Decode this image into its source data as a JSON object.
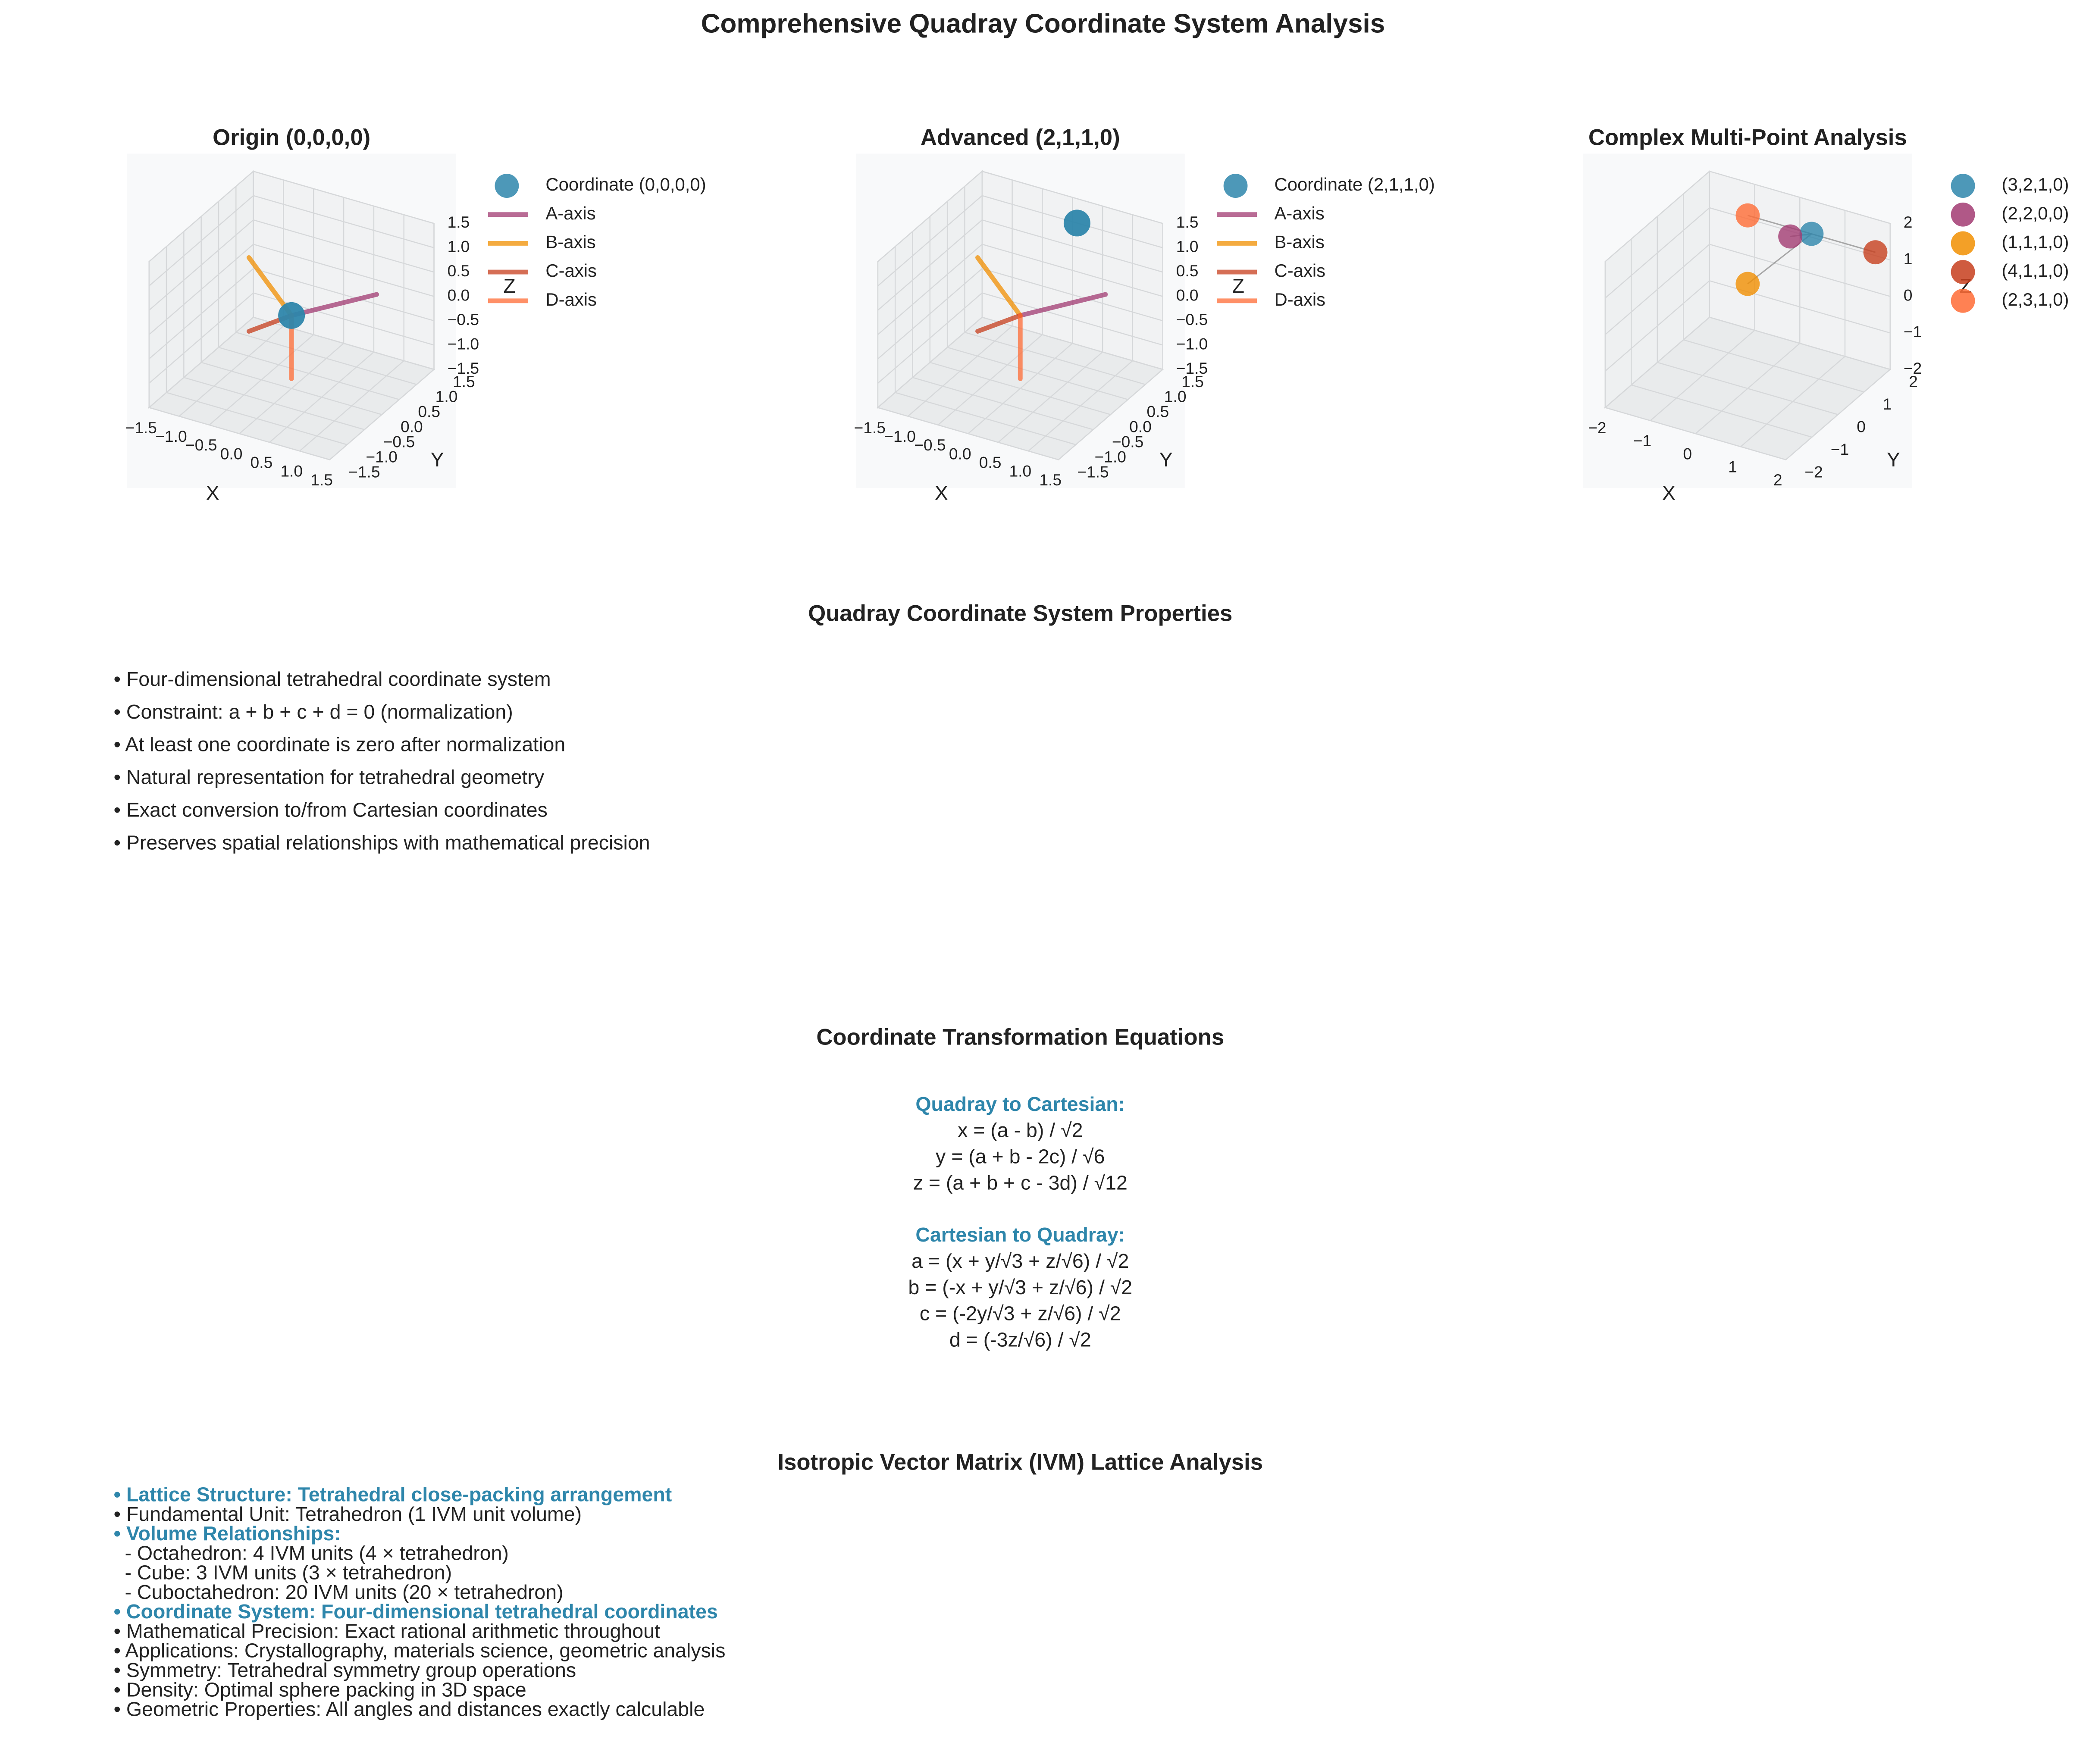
{
  "title": "Comprehensive Quadray Coordinate System Analysis",
  "chart_data": [
    {
      "type": "scatter3d",
      "title": "Origin (0,0,0,0)",
      "xlabel": "X",
      "ylabel": "Y",
      "zlabel": "Z",
      "legend": "outside right",
      "xlim": [
        -1.5,
        1.5
      ],
      "ylim": [
        -1.5,
        1.5
      ],
      "zlim": [
        -1.5,
        1.5
      ],
      "xticks": [
        {
          "value": -1.5,
          "label": "−1.5"
        },
        {
          "value": -1,
          "label": "−1.0"
        },
        {
          "value": -0.5,
          "label": "−0.5"
        },
        {
          "value": 0,
          "label": "0.0"
        },
        0.5,
        {
          "value": 1,
          "label": "1.0"
        },
        1.5
      ],
      "yticks": [
        {
          "value": -1.5,
          "label": "−1.5"
        },
        {
          "value": -1,
          "label": "−1.0"
        },
        {
          "value": -0.5,
          "label": "−0.5"
        },
        {
          "value": 0,
          "label": "0.0"
        },
        0.5,
        {
          "value": 1,
          "label": "1.0"
        },
        1.5
      ],
      "zticks": [
        {
          "value": -1.5,
          "label": "−1.5"
        },
        {
          "value": -1,
          "label": "−1.0"
        },
        {
          "value": -0.5,
          "label": "−0.5"
        },
        {
          "value": 0,
          "label": "0.0"
        },
        0.5,
        {
          "value": 1,
          "label": "1.0"
        },
        1.5
      ],
      "series": [
        {
          "name": "Coordinate (0,0,0,0)",
          "kind": "point",
          "color": "#2e86ab",
          "x": [
            0
          ],
          "y": [
            0
          ],
          "z": [
            0
          ]
        },
        {
          "name": "A-axis",
          "kind": "line",
          "color": "#a23b72",
          "x": [
            0,
            1.061
          ],
          "y": [
            0,
            0.612
          ],
          "z": [
            0,
            0.433
          ]
        },
        {
          "name": "B-axis",
          "kind": "line",
          "color": "#f18f01",
          "x": [
            0,
            -1.061
          ],
          "y": [
            0,
            0.612
          ],
          "z": [
            0,
            0.433
          ]
        },
        {
          "name": "C-axis",
          "kind": "line",
          "color": "#c73e1d",
          "x": [
            0,
            0
          ],
          "y": [
            0,
            -1.225
          ],
          "z": [
            0,
            0.433
          ]
        },
        {
          "name": "D-axis",
          "kind": "line",
          "color": "#ff6b35",
          "x": [
            0,
            0
          ],
          "y": [
            0,
            0
          ],
          "z": [
            0,
            -1.299
          ]
        }
      ]
    },
    {
      "type": "scatter3d",
      "title": "Advanced (2,1,1,0)",
      "xlabel": "X",
      "ylabel": "Y",
      "zlabel": "Z",
      "legend": "outside right",
      "xlim": [
        -1.5,
        1.5
      ],
      "ylim": [
        -1.5,
        1.5
      ],
      "zlim": [
        -1.5,
        1.5
      ],
      "xticks": [
        {
          "value": -1.5,
          "label": "−1.5"
        },
        {
          "value": -1,
          "label": "−1.0"
        },
        {
          "value": -0.5,
          "label": "−0.5"
        },
        {
          "value": 0,
          "label": "0.0"
        },
        0.5,
        {
          "value": 1,
          "label": "1.0"
        },
        1.5
      ],
      "yticks": [
        {
          "value": -1.5,
          "label": "−1.5"
        },
        {
          "value": -1,
          "label": "−1.0"
        },
        {
          "value": -0.5,
          "label": "−0.5"
        },
        {
          "value": 0,
          "label": "0.0"
        },
        0.5,
        {
          "value": 1,
          "label": "1.0"
        },
        1.5
      ],
      "zticks": [
        {
          "value": -1.5,
          "label": "−1.5"
        },
        {
          "value": -1,
          "label": "−1.0"
        },
        {
          "value": -0.5,
          "label": "−0.5"
        },
        {
          "value": 0,
          "label": "0.0"
        },
        0.5,
        {
          "value": 1,
          "label": "1.0"
        },
        1.5
      ],
      "series": [
        {
          "name": "Coordinate (2,1,1,0)",
          "kind": "point",
          "color": "#2e86ab",
          "x": [
            0.707
          ],
          "y": [
            0.408
          ],
          "z": [
            1.9
          ]
        },
        {
          "name": "A-axis",
          "kind": "line",
          "color": "#a23b72",
          "x": [
            0,
            1.061
          ],
          "y": [
            0,
            0.612
          ],
          "z": [
            0,
            0.433
          ]
        },
        {
          "name": "B-axis",
          "kind": "line",
          "color": "#f18f01",
          "x": [
            0,
            -1.061
          ],
          "y": [
            0,
            0.612
          ],
          "z": [
            0,
            0.433
          ]
        },
        {
          "name": "C-axis",
          "kind": "line",
          "color": "#c73e1d",
          "x": [
            0,
            0
          ],
          "y": [
            0,
            -1.225
          ],
          "z": [
            0,
            0.433
          ]
        },
        {
          "name": "D-axis",
          "kind": "line",
          "color": "#ff6b35",
          "x": [
            0,
            0
          ],
          "y": [
            0,
            0
          ],
          "z": [
            0,
            -1.299
          ]
        }
      ]
    },
    {
      "type": "scatter3d",
      "title": "Complex Multi-Point Analysis",
      "xlabel": "X",
      "ylabel": "Y",
      "zlabel": "Z",
      "legend": "outside right",
      "xlim": [
        -2,
        2
      ],
      "ylim": [
        -2,
        2
      ],
      "zlim": [
        -2,
        2
      ],
      "xticks": [
        {
          "value": -2,
          "label": "−2"
        },
        {
          "value": -1,
          "label": "−1"
        },
        0,
        1,
        2
      ],
      "yticks": [
        {
          "value": -2,
          "label": "−2"
        },
        {
          "value": -1,
          "label": "−1"
        },
        0,
        1,
        2
      ],
      "zticks": [
        {
          "value": -2,
          "label": "−2"
        },
        {
          "value": -1,
          "label": "−1"
        },
        0,
        1,
        2
      ],
      "series": [
        {
          "name": "(3,2,1,0)",
          "kind": "point",
          "color": "#2e86ab",
          "x": [
            0.707
          ],
          "y": [
            1.225
          ],
          "z": [
            1.732
          ]
        },
        {
          "name": "(2,2,0,0)",
          "kind": "point",
          "color": "#a23b72",
          "x": [
            0
          ],
          "y": [
            1.633
          ],
          "z": [
            1.155
          ]
        },
        {
          "name": "(1,1,1,0)",
          "kind": "point",
          "color": "#f18f01",
          "x": [
            0
          ],
          "y": [
            0
          ],
          "z": [
            0.866
          ]
        },
        {
          "name": "(4,1,1,0)",
          "kind": "point",
          "color": "#c73e1d",
          "x": [
            2.121
          ],
          "y": [
            1.225
          ],
          "z": [
            1.732
          ]
        },
        {
          "name": "(2,3,1,0)",
          "kind": "point",
          "color": "#ff6b35",
          "x": [
            -0.707
          ],
          "y": [
            1.225
          ],
          "z": [
            1.732
          ]
        }
      ]
    }
  ],
  "properties": {
    "title": "Quadray Coordinate System Properties",
    "items": [
      "• Four-dimensional tetrahedral coordinate system",
      "• Constraint: a + b + c + d = 0 (normalization)",
      "• At least one coordinate is zero after normalization",
      "• Natural representation for tetrahedral geometry",
      "• Exact conversion to/from Cartesian coordinates",
      "• Preserves spatial relationships with mathematical precision"
    ]
  },
  "equations": {
    "title": "Coordinate Transformation Equations",
    "sections": [
      {
        "heading": "Quadray to Cartesian:",
        "lines": [
          "x = (a - b) / √2",
          "y = (a + b - 2c) / √6",
          "z = (a + b + c - 3d) / √12"
        ]
      },
      {
        "heading": "Cartesian to Quadray:",
        "lines": [
          "a = (x + y/√3 + z/√6) / √2",
          "b = (-x + y/√3 + z/√6) / √2",
          "c = (-2y/√3 + z/√6) / √2",
          "d = (-3z/√6) / √2"
        ]
      }
    ]
  },
  "ivm": {
    "title": "Isotropic Vector Matrix (IVM) Lattice Analysis",
    "lines": [
      {
        "text": "• Lattice Structure: Tetrahedral close-packing arrangement",
        "highlight": true
      },
      {
        "text": "• Fundamental Unit: Tetrahedron (1 IVM unit volume)",
        "highlight": false
      },
      {
        "text": "• Volume Relationships:",
        "highlight": true
      },
      {
        "text": "  - Octahedron: 4 IVM units (4 × tetrahedron)",
        "highlight": false
      },
      {
        "text": "  - Cube: 3 IVM units (3 × tetrahedron)",
        "highlight": false
      },
      {
        "text": "  - Cuboctahedron: 20 IVM units (20 × tetrahedron)",
        "highlight": false
      },
      {
        "text": "• Coordinate System: Four-dimensional tetrahedral coordinates",
        "highlight": true
      },
      {
        "text": "• Mathematical Precision: Exact rational arithmetic throughout",
        "highlight": false
      },
      {
        "text": "• Applications: Crystallography, materials science, geometric analysis",
        "highlight": false
      },
      {
        "text": "• Symmetry: Tetrahedral symmetry group operations",
        "highlight": false
      },
      {
        "text": "• Density: Optimal sphere packing in 3D space",
        "highlight": false
      },
      {
        "text": "• Geometric Properties: All angles and distances exactly calculable",
        "highlight": false
      }
    ]
  }
}
